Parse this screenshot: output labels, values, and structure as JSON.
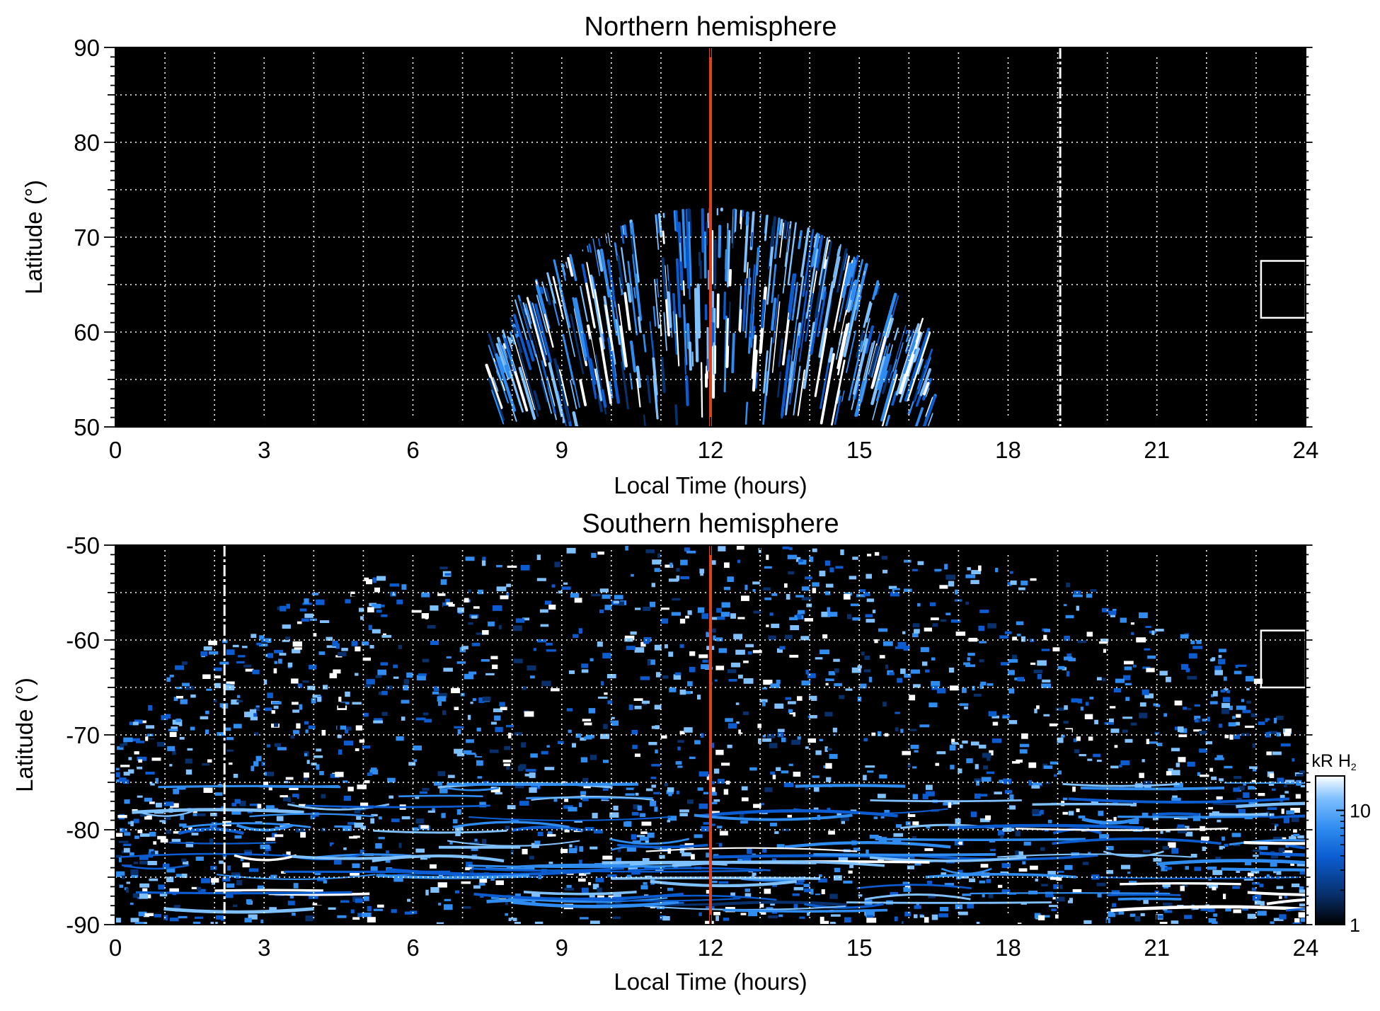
{
  "chart_data": [
    {
      "type": "heatmap",
      "title": "Northern hemisphere",
      "xlabel": "Local Time (hours)",
      "ylabel": "Latitude (°)",
      "xlim": [
        0,
        24
      ],
      "ylim": [
        50,
        90
      ],
      "x_ticks": [
        "0",
        "3",
        "6",
        "9",
        "12",
        "15",
        "18",
        "21",
        "24"
      ],
      "y_ticks": [
        "50",
        "60",
        "70",
        "80",
        "90"
      ],
      "grid": true,
      "colormap": [
        "#000000",
        "#08306b",
        "#0b5cd0",
        "#2f8cf0",
        "#7fc0ff",
        "#ffffff"
      ],
      "emission_region": {
        "lt_range": [
          7.7,
          16.5
        ],
        "center_lt": 12,
        "peak_latitude": 73
      },
      "markers": [
        {
          "kind": "noon-line",
          "x": 12,
          "color": "#e0401c"
        },
        {
          "kind": "dashed-line",
          "x": 19.05,
          "color": "#ffffff"
        },
        {
          "kind": "box",
          "x_range": [
            23.1,
            24
          ],
          "y_range": [
            61.5,
            67.5
          ],
          "color": "#ffffff"
        }
      ]
    },
    {
      "type": "heatmap",
      "title": "Southern hemisphere",
      "xlabel": "Local Time (hours)",
      "ylabel": "Latitude (°)",
      "xlim": [
        0,
        24
      ],
      "ylim": [
        -90,
        -50
      ],
      "x_ticks": [
        "0",
        "3",
        "6",
        "9",
        "12",
        "15",
        "18",
        "21",
        "24"
      ],
      "y_ticks": [
        "-50",
        "-60",
        "-70",
        "-80",
        "-90"
      ],
      "grid": true,
      "colormap": [
        "#000000",
        "#08306b",
        "#0b5cd0",
        "#2f8cf0",
        "#7fc0ff",
        "#ffffff"
      ],
      "emission_region": {
        "lt_range": [
          0,
          24
        ],
        "center_lt": 12,
        "edge_latitude": -74.5
      },
      "markers": [
        {
          "kind": "noon-line",
          "x": 12,
          "color": "#e0401c"
        },
        {
          "kind": "dashed-line",
          "x": 2.2,
          "color": "#ffffff"
        },
        {
          "kind": "box",
          "x_range": [
            23.1,
            24
          ],
          "y_range": [
            -65,
            -59
          ],
          "color": "#ffffff"
        }
      ]
    }
  ],
  "colorbar": {
    "label_prefix": "kR H",
    "label_subscript": "2",
    "tick_labels": [
      "1",
      "10"
    ],
    "range": [
      1,
      20
    ],
    "scale": "log"
  }
}
